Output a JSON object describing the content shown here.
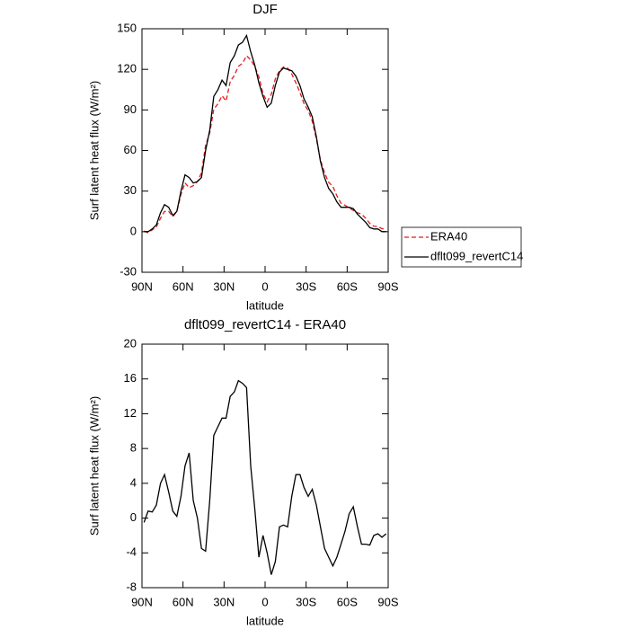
{
  "chart_data": [
    {
      "type": "line",
      "title": "DJF",
      "xlabel": "latitude",
      "ylabel": "Surf latent heat flux (W/m²)",
      "x": [
        88.5,
        85.5,
        82.5,
        79.5,
        76.5,
        73.5,
        70.5,
        67.5,
        64.5,
        61.5,
        58.5,
        55.5,
        52.5,
        49.5,
        46.5,
        43.5,
        40.5,
        37.5,
        34.5,
        31.5,
        28.5,
        25.5,
        22.5,
        19.5,
        16.5,
        13.5,
        10.5,
        7.5,
        4.5,
        1.5,
        -1.5,
        -4.5,
        -7.5,
        -10.5,
        -13.5,
        -16.5,
        -19.5,
        -22.5,
        -25.5,
        -28.5,
        -31.5,
        -34.5,
        -37.5,
        -40.5,
        -43.5,
        -46.5,
        -49.5,
        -52.5,
        -55.5,
        -58.5,
        -61.5,
        -64.5,
        -67.5,
        -70.5,
        -73.5,
        -76.5,
        -79.5,
        -82.5,
        -85.5,
        -88.5
      ],
      "series": [
        {
          "name": "ERA40",
          "color": "#e41a1c",
          "dashed": true,
          "values": [
            0.5,
            -0.8,
            1.3,
            3.5,
            10,
            15,
            15,
            11.2,
            14.8,
            27.5,
            36,
            32.5,
            34,
            37,
            43.5,
            63.8,
            73,
            90.5,
            94.5,
            100.5,
            96.5,
            111,
            115.5,
            122.2,
            124.5,
            130,
            127,
            122,
            114.5,
            102,
            96,
            101.5,
            113,
            119,
            121.8,
            121,
            116.5,
            110,
            103,
            94.5,
            89.5,
            81.7,
            68.5,
            53,
            43.5,
            36.5,
            33.5,
            26.5,
            21,
            19.5,
            17.5,
            15.7,
            14,
            13,
            10,
            6.1,
            4,
            3.8,
            2.2,
            1.8
          ]
        },
        {
          "name": "dflt099_revertC14",
          "color": "#000000",
          "dashed": false,
          "values": [
            0,
            0,
            2,
            5,
            14,
            20,
            18,
            12,
            15,
            30,
            42,
            40,
            36,
            37,
            40,
            60,
            75,
            100,
            105,
            112,
            108,
            125,
            130,
            138,
            140,
            145,
            133,
            123,
            110,
            100,
            92,
            95,
            108,
            118,
            121,
            120,
            119,
            115,
            108,
            98,
            92,
            85,
            70,
            52,
            40,
            32,
            28,
            22,
            18,
            18,
            18,
            17,
            13,
            10,
            7,
            3,
            2,
            2,
            0,
            0
          ]
        }
      ],
      "xlim": [
        90,
        -90
      ],
      "xticks": [
        {
          "value": 90,
          "label": "90N"
        },
        {
          "value": 60,
          "label": "60N"
        },
        {
          "value": 30,
          "label": "30N"
        },
        0,
        {
          "value": -30,
          "label": "30S"
        },
        {
          "value": -60,
          "label": "60S"
        },
        {
          "value": -90,
          "label": "90S"
        }
      ],
      "ylim": [
        -30,
        150
      ],
      "yticks": [
        -30,
        0,
        30,
        60,
        90,
        120,
        150
      ],
      "legend": "right"
    },
    {
      "type": "line",
      "title": "dflt099_revertC14 - ERA40",
      "xlabel": "latitude",
      "ylabel": "Surf latent heat flux (W/m²)",
      "x": [
        88.5,
        85.5,
        82.5,
        79.5,
        76.5,
        73.5,
        70.5,
        67.5,
        64.5,
        61.5,
        58.5,
        55.5,
        52.5,
        49.5,
        46.5,
        43.5,
        40.5,
        37.5,
        34.5,
        31.5,
        28.5,
        25.5,
        22.5,
        19.5,
        16.5,
        13.5,
        10.5,
        7.5,
        4.5,
        1.5,
        -1.5,
        -4.5,
        -7.5,
        -10.5,
        -13.5,
        -16.5,
        -19.5,
        -22.5,
        -25.5,
        -28.5,
        -31.5,
        -34.5,
        -37.5,
        -40.5,
        -43.5,
        -46.5,
        -49.5,
        -52.5,
        -55.5,
        -58.5,
        -61.5,
        -64.5,
        -67.5,
        -70.5,
        -73.5,
        -76.5,
        -79.5,
        -82.5,
        -85.5,
        -88.5
      ],
      "values": [
        -0.5,
        0.8,
        0.7,
        1.5,
        4,
        5,
        3,
        0.8,
        0.2,
        2.5,
        6,
        7.5,
        2,
        0,
        -3.5,
        -3.8,
        2,
        9.5,
        10.5,
        11.5,
        11.5,
        14,
        14.5,
        15.8,
        15.5,
        15,
        6,
        1,
        -4.5,
        -2,
        -4,
        -6.5,
        -5,
        -1,
        -0.8,
        -1,
        2.5,
        5,
        5,
        3.5,
        2.5,
        3.3,
        1.5,
        -1,
        -3.5,
        -4.5,
        -5.5,
        -4.5,
        -3,
        -1.5,
        0.5,
        1.3,
        -1,
        -3,
        -3,
        -3.1,
        -2,
        -1.8,
        -2.2,
        -1.8
      ],
      "color": "#000000",
      "xlim": [
        90,
        -90
      ],
      "xticks": [
        {
          "value": 90,
          "label": "90N"
        },
        {
          "value": 60,
          "label": "60N"
        },
        {
          "value": 30,
          "label": "30N"
        },
        0,
        {
          "value": -30,
          "label": "30S"
        },
        {
          "value": -60,
          "label": "60S"
        },
        {
          "value": -90,
          "label": "90S"
        }
      ],
      "ylim": [
        -8,
        20
      ],
      "yticks": [
        -8,
        -4,
        0,
        4,
        8,
        12,
        16,
        20
      ]
    }
  ]
}
